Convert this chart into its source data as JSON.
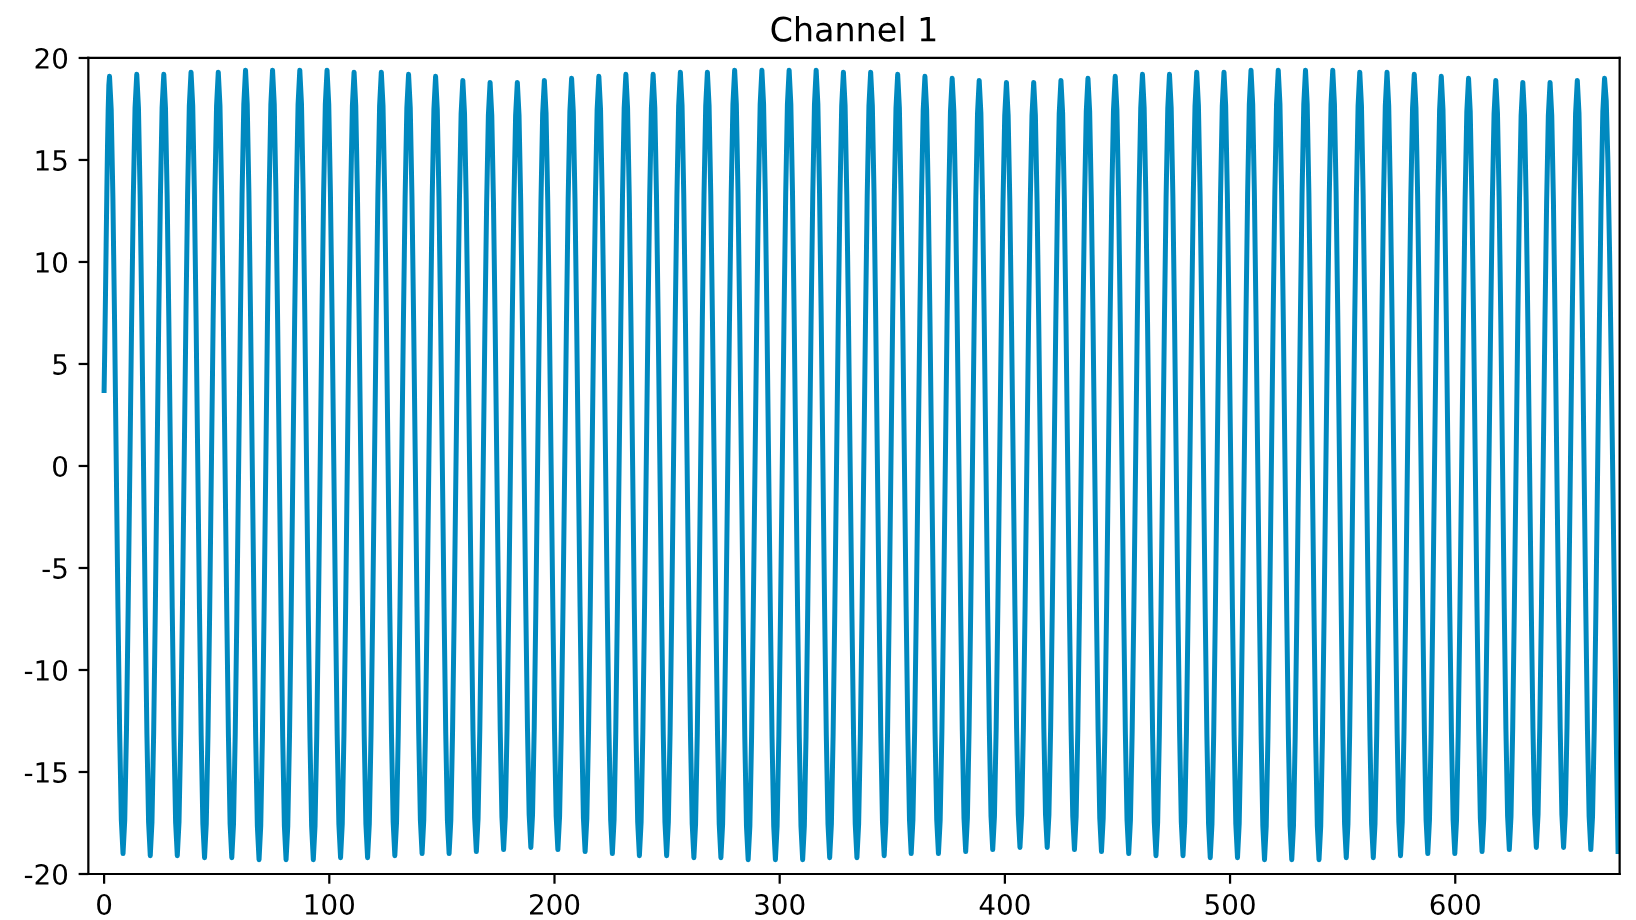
{
  "chart_data": {
    "type": "line",
    "title": "Channel 1",
    "xlim": [
      -7,
      673
    ],
    "xticks": [
      0,
      100,
      200,
      300,
      400,
      500,
      600
    ],
    "ylim": [
      -20,
      20
    ],
    "yticks": [
      -20,
      -15,
      -10,
      -5,
      0,
      5,
      10,
      15,
      20
    ],
    "grid": false,
    "legend": false,
    "marker": "none",
    "line_style": "solid",
    "series": [
      {
        "color": "#0089bf",
        "x": [
          0,
          2.4,
          8.4,
          14.5,
          20.5,
          26.5,
          32.5,
          38.6,
          44.6,
          50.7,
          56.7,
          62.8,
          68.8,
          74.8,
          80.8,
          86.9,
          92.9,
          99.0,
          105.0,
          111.0,
          117.0,
          123.1,
          129.1,
          135.2,
          141.2,
          147.2,
          153.2,
          159.3,
          165.3,
          171.4,
          177.4,
          183.5,
          189.5,
          195.5,
          201.5,
          207.6,
          213.6,
          219.7,
          225.7,
          231.7,
          237.7,
          243.8,
          249.8,
          255.9,
          261.9,
          267.9,
          273.9,
          280.0,
          286.0,
          292.1,
          298.1,
          304.2,
          310.2,
          316.2,
          322.2,
          328.3,
          334.3,
          340.4,
          346.4,
          352.4,
          358.4,
          364.5,
          370.5,
          376.6,
          382.6,
          388.6,
          394.6,
          400.7,
          406.7,
          412.8,
          418.8,
          424.9,
          430.9,
          436.9,
          442.9,
          449.0,
          455.0,
          461.1,
          467.1,
          473.1,
          479.1,
          485.2,
          491.2,
          497.3,
          503.3,
          509.3,
          515.3,
          521.4,
          527.4,
          533.5,
          539.5,
          545.6,
          551.6,
          557.6,
          563.6,
          569.7,
          575.7,
          581.8,
          587.8,
          593.8,
          599.8,
          605.9,
          611.9,
          618.0,
          624.0,
          630.0,
          636.0,
          642.1,
          648.1,
          654.2,
          660.2,
          666.3,
          672.3
        ],
        "values": [
          3.7,
          19.1,
          -19.0,
          19.2,
          -19.1,
          19.2,
          -19.1,
          19.3,
          -19.2,
          19.3,
          -19.2,
          19.4,
          -19.3,
          19.4,
          -19.3,
          19.4,
          -19.3,
          19.4,
          -19.2,
          19.3,
          -19.2,
          19.3,
          -19.1,
          19.2,
          -19.0,
          19.1,
          -19.0,
          18.9,
          -18.9,
          18.8,
          -18.8,
          18.8,
          -18.7,
          18.9,
          -18.8,
          19.0,
          -18.9,
          19.1,
          -19.0,
          19.2,
          -19.1,
          19.2,
          -19.1,
          19.3,
          -19.2,
          19.3,
          -19.2,
          19.4,
          -19.3,
          19.4,
          -19.3,
          19.4,
          -19.3,
          19.4,
          -19.2,
          19.3,
          -19.2,
          19.3,
          -19.1,
          19.2,
          -19.0,
          19.1,
          -19.0,
          19.0,
          -18.9,
          18.9,
          -18.8,
          18.8,
          -18.7,
          18.8,
          -18.7,
          18.9,
          -18.8,
          19.0,
          -18.9,
          19.1,
          -19.0,
          19.2,
          -19.1,
          19.2,
          -19.1,
          19.3,
          -19.2,
          19.3,
          -19.2,
          19.4,
          -19.3,
          19.4,
          -19.3,
          19.4,
          -19.3,
          19.4,
          -19.2,
          19.3,
          -19.2,
          19.3,
          -19.1,
          19.2,
          -19.0,
          19.1,
          -19.0,
          19.0,
          -18.9,
          18.9,
          -18.8,
          18.8,
          -18.7,
          18.8,
          -18.7,
          18.9,
          -18.8,
          19.0,
          -18.9
        ]
      }
    ]
  }
}
